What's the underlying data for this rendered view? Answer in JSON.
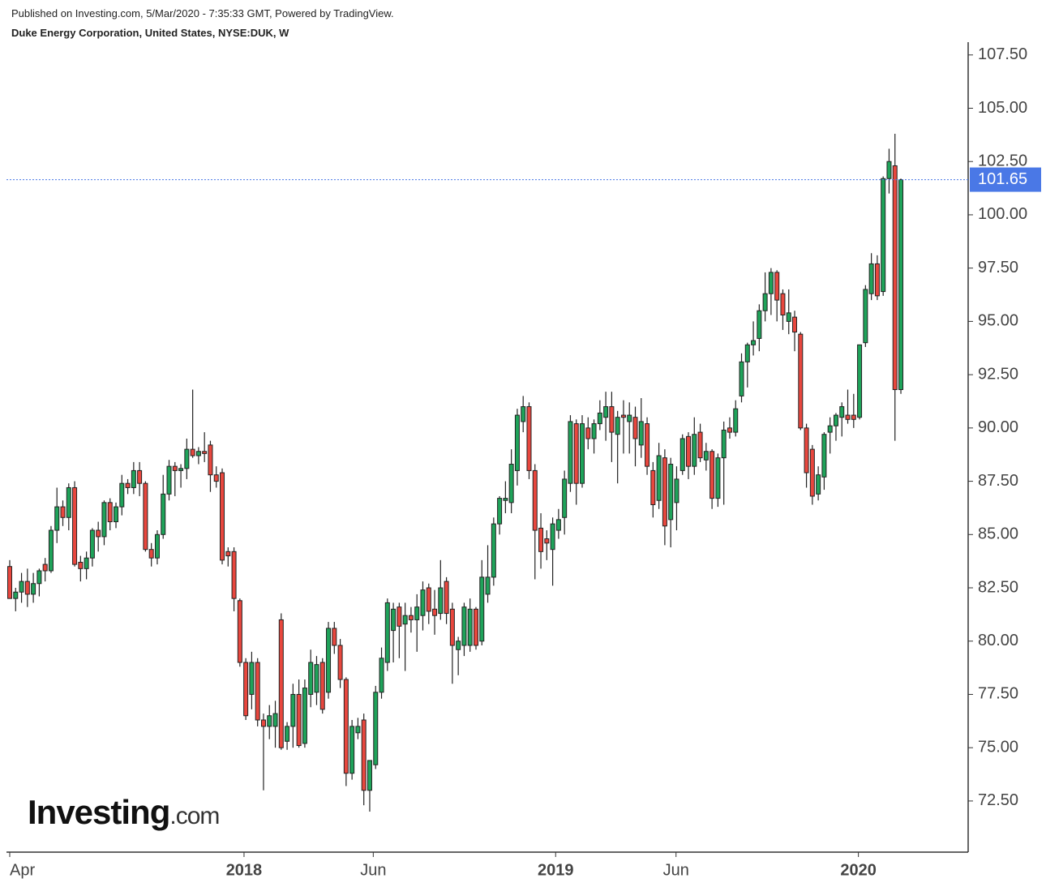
{
  "header": {
    "published": "Published on Investing.com, 5/Mar/2020 - 7:35:33 GMT, Powered by TradingView.",
    "symbol": "Duke Energy Corporation, United States, NYSE:DUK, W",
    "logo_main": "Investing",
    "logo_suffix": ".com"
  },
  "chart_data": {
    "type": "candlestick",
    "up_color": "#1fa35a",
    "down_color": "#e8473e",
    "ylim": [
      70.1,
      108.1
    ],
    "yticks": [
      {
        "value": 72.5,
        "label": "72.50"
      },
      {
        "value": 75,
        "label": "75.00"
      },
      {
        "value": 77.5,
        "label": "77.50"
      },
      {
        "value": 80,
        "label": "80.00"
      },
      {
        "value": 82.5,
        "label": "82.50"
      },
      {
        "value": 85,
        "label": "85.00"
      },
      {
        "value": 87.5,
        "label": "87.50"
      },
      {
        "value": 90,
        "label": "90.00"
      },
      {
        "value": 92.5,
        "label": "92.50"
      },
      {
        "value": 95,
        "label": "95.00"
      },
      {
        "value": 97.5,
        "label": "97.50"
      },
      {
        "value": 100,
        "label": "100.00"
      },
      {
        "value": 102.5,
        "label": "102.50"
      },
      {
        "value": 105,
        "label": "105.00"
      },
      {
        "value": 107.5,
        "label": "107.50"
      }
    ],
    "xlim": [
      -0.4,
      162
    ],
    "xticks": [
      {
        "value": 0,
        "label": "Apr"
      },
      {
        "value": 39.7,
        "label": "2018"
      },
      {
        "value": 61.6,
        "label": "Jun"
      },
      {
        "value": 92.5,
        "label": "2019"
      },
      {
        "value": 112.9,
        "label": "Jun"
      },
      {
        "value": 143.8,
        "label": "2020"
      }
    ],
    "last_price": {
      "value": 101.65,
      "label": "101.65",
      "color": "#4a78e6"
    },
    "candles": [
      [
        83.5,
        83.8,
        82.0,
        82.0
      ],
      [
        82.0,
        82.5,
        81.4,
        82.3
      ],
      [
        82.3,
        83.2,
        81.8,
        82.8
      ],
      [
        82.8,
        83.4,
        81.6,
        82.2
      ],
      [
        82.2,
        83.2,
        81.8,
        82.7
      ],
      [
        82.7,
        83.4,
        82.1,
        83.3
      ],
      [
        83.6,
        83.9,
        82.8,
        83.3
      ],
      [
        83.3,
        85.4,
        83.2,
        85.2
      ],
      [
        85.2,
        87.2,
        84.6,
        86.3
      ],
      [
        86.3,
        86.6,
        85.4,
        85.8
      ],
      [
        85.8,
        87.4,
        85.2,
        87.2
      ],
      [
        87.2,
        87.5,
        83.5,
        83.6
      ],
      [
        83.7,
        84.0,
        82.8,
        83.4
      ],
      [
        83.4,
        84.2,
        82.9,
        83.9
      ],
      [
        83.9,
        85.3,
        83.5,
        85.2
      ],
      [
        85.2,
        85.6,
        84.2,
        84.9
      ],
      [
        84.9,
        86.6,
        84.5,
        86.5
      ],
      [
        86.5,
        86.7,
        85.2,
        85.6
      ],
      [
        85.6,
        86.5,
        85.3,
        86.3
      ],
      [
        86.3,
        87.8,
        85.9,
        87.4
      ],
      [
        87.4,
        87.6,
        86.9,
        87.2
      ],
      [
        87.2,
        88.4,
        86.9,
        88.0
      ],
      [
        88.0,
        88.4,
        86.8,
        87.4
      ],
      [
        87.4,
        87.5,
        84.2,
        84.3
      ],
      [
        84.3,
        84.6,
        83.5,
        83.9
      ],
      [
        83.9,
        85.2,
        83.6,
        85.0
      ],
      [
        85.0,
        87.8,
        84.8,
        86.9
      ],
      [
        86.9,
        88.5,
        86.6,
        88.2
      ],
      [
        88.2,
        88.4,
        86.8,
        88.0
      ],
      [
        88.0,
        88.3,
        87.2,
        88.1
      ],
      [
        88.1,
        89.5,
        87.6,
        89.0
      ],
      [
        89.0,
        91.8,
        88.6,
        88.7
      ],
      [
        88.7,
        89.1,
        88.3,
        88.9
      ],
      [
        88.9,
        89.8,
        88.4,
        88.8
      ],
      [
        89.2,
        89.4,
        87.0,
        87.8
      ],
      [
        87.8,
        88.2,
        87.2,
        87.5
      ],
      [
        87.9,
        88.1,
        83.6,
        83.8
      ],
      [
        84.2,
        84.4,
        83.5,
        84.0
      ],
      [
        84.2,
        84.4,
        81.4,
        82.0
      ],
      [
        81.9,
        82.0,
        78.8,
        79.0
      ],
      [
        79.0,
        79.2,
        76.3,
        76.5
      ],
      [
        77.5,
        79.5,
        76.8,
        79.0
      ],
      [
        79.0,
        79.2,
        76.0,
        76.3
      ],
      [
        76.3,
        76.6,
        73.0,
        76.0
      ],
      [
        76.0,
        77.0,
        75.4,
        76.5
      ],
      [
        76.0,
        77.2,
        75.0,
        76.6
      ],
      [
        81.0,
        81.3,
        74.9,
        75.0
      ],
      [
        75.3,
        76.2,
        74.9,
        76.0
      ],
      [
        76.0,
        78.0,
        75.0,
        77.5
      ],
      [
        77.5,
        78.2,
        75.0,
        75.1
      ],
      [
        75.2,
        78.2,
        75.0,
        77.8
      ],
      [
        77.5,
        79.6,
        76.9,
        79.0
      ],
      [
        77.6,
        79.3,
        77.0,
        78.9
      ],
      [
        79.0,
        79.2,
        76.6,
        76.8
      ],
      [
        77.6,
        80.9,
        77.3,
        80.6
      ],
      [
        80.6,
        80.9,
        79.4,
        79.8
      ],
      [
        79.8,
        80.1,
        77.8,
        78.2
      ],
      [
        78.2,
        78.3,
        73.2,
        73.8
      ],
      [
        73.8,
        76.3,
        73.5,
        76.0
      ],
      [
        75.7,
        76.4,
        75.4,
        76.0
      ],
      [
        76.3,
        76.6,
        72.3,
        73.0
      ],
      [
        73.0,
        74.4,
        72.0,
        74.4
      ],
      [
        74.2,
        77.9,
        74.0,
        77.6
      ],
      [
        77.6,
        79.7,
        77.3,
        79.2
      ],
      [
        79.0,
        82.0,
        78.6,
        81.8
      ],
      [
        80.5,
        81.8,
        79.0,
        81.5
      ],
      [
        81.6,
        81.8,
        79.2,
        80.7
      ],
      [
        80.8,
        81.8,
        78.6,
        81.2
      ],
      [
        81.2,
        81.6,
        80.4,
        81.0
      ],
      [
        81.0,
        82.2,
        79.5,
        81.6
      ],
      [
        81.2,
        82.8,
        80.5,
        82.4
      ],
      [
        82.5,
        82.7,
        80.8,
        81.4
      ],
      [
        81.5,
        82.4,
        80.3,
        81.2
      ],
      [
        81.3,
        83.8,
        81.0,
        82.5
      ],
      [
        82.8,
        83.0,
        80.8,
        81.3
      ],
      [
        81.5,
        81.8,
        78.0,
        79.8
      ],
      [
        79.6,
        80.2,
        78.4,
        80.0
      ],
      [
        79.8,
        81.8,
        79.3,
        81.6
      ],
      [
        79.8,
        82.0,
        79.5,
        81.5
      ],
      [
        81.5,
        81.6,
        79.6,
        79.8
      ],
      [
        80.0,
        83.8,
        79.8,
        83.0
      ],
      [
        82.2,
        84.5,
        81.8,
        83.0
      ],
      [
        83.0,
        85.8,
        82.6,
        85.5
      ],
      [
        85.5,
        86.8,
        85.0,
        86.7
      ],
      [
        86.6,
        87.5,
        86.0,
        86.7
      ],
      [
        86.5,
        89.0,
        86.0,
        88.3
      ],
      [
        88.0,
        90.9,
        87.3,
        90.6
      ],
      [
        90.3,
        91.5,
        89.8,
        91.0
      ],
      [
        91.0,
        91.2,
        87.6,
        88.0
      ],
      [
        88.0,
        88.3,
        82.9,
        85.2
      ],
      [
        85.3,
        86.0,
        83.4,
        84.2
      ],
      [
        84.8,
        85.2,
        83.8,
        84.6
      ],
      [
        84.3,
        85.8,
        82.6,
        85.5
      ],
      [
        85.2,
        86.2,
        84.8,
        85.7
      ],
      [
        85.8,
        88.0,
        85.0,
        87.6
      ],
      [
        87.4,
        90.6,
        87.0,
        90.3
      ],
      [
        90.2,
        90.4,
        86.4,
        87.4
      ],
      [
        87.4,
        90.6,
        87.2,
        90.2
      ],
      [
        90.0,
        90.5,
        89.0,
        89.5
      ],
      [
        89.5,
        90.4,
        88.8,
        90.2
      ],
      [
        90.2,
        91.3,
        89.9,
        90.7
      ],
      [
        90.5,
        91.7,
        89.4,
        91.0
      ],
      [
        91.0,
        91.7,
        88.4,
        89.8
      ],
      [
        89.7,
        90.8,
        87.4,
        90.5
      ],
      [
        90.6,
        91.3,
        88.8,
        90.5
      ],
      [
        90.3,
        91.2,
        88.8,
        90.6
      ],
      [
        90.5,
        91.0,
        88.2,
        89.5
      ],
      [
        89.2,
        91.4,
        88.6,
        90.3
      ],
      [
        90.2,
        90.5,
        87.8,
        88.2
      ],
      [
        88.0,
        88.4,
        85.8,
        86.4
      ],
      [
        86.6,
        89.3,
        86.2,
        88.7
      ],
      [
        88.6,
        89.0,
        84.5,
        85.4
      ],
      [
        85.7,
        88.6,
        84.4,
        88.3
      ],
      [
        86.5,
        88.2,
        85.2,
        87.6
      ],
      [
        88.0,
        89.7,
        87.8,
        89.5
      ],
      [
        89.6,
        89.8,
        87.6,
        88.2
      ],
      [
        88.2,
        90.5,
        87.8,
        89.7
      ],
      [
        89.8,
        90.2,
        88.4,
        88.6
      ],
      [
        88.5,
        89.3,
        88.0,
        88.9
      ],
      [
        88.9,
        89.0,
        86.2,
        86.7
      ],
      [
        86.7,
        88.8,
        86.3,
        88.6
      ],
      [
        88.6,
        90.3,
        86.4,
        89.9
      ],
      [
        90.0,
        90.5,
        89.5,
        89.8
      ],
      [
        89.8,
        91.3,
        89.6,
        90.9
      ],
      [
        91.5,
        93.5,
        91.2,
        93.1
      ],
      [
        93.1,
        94.0,
        91.9,
        93.9
      ],
      [
        93.9,
        95.0,
        93.4,
        94.1
      ],
      [
        94.2,
        95.8,
        93.6,
        95.5
      ],
      [
        95.5,
        97.3,
        95.0,
        96.3
      ],
      [
        96.3,
        97.5,
        95.3,
        97.3
      ],
      [
        97.3,
        97.4,
        95.0,
        96.0
      ],
      [
        96.3,
        96.5,
        94.6,
        95.3
      ],
      [
        95.0,
        96.5,
        94.4,
        95.4
      ],
      [
        95.2,
        95.5,
        93.6,
        94.5
      ],
      [
        94.4,
        94.5,
        89.9,
        90.0
      ],
      [
        90.0,
        90.2,
        87.2,
        87.9
      ],
      [
        89.0,
        89.2,
        86.4,
        86.8
      ],
      [
        86.9,
        88.2,
        86.6,
        87.8
      ],
      [
        87.7,
        89.8,
        87.1,
        89.7
      ],
      [
        89.8,
        90.5,
        88.8,
        90.1
      ],
      [
        90.1,
        90.7,
        89.4,
        90.6
      ],
      [
        90.5,
        91.2,
        89.6,
        91.0
      ],
      [
        90.6,
        91.8,
        90.2,
        90.4
      ],
      [
        90.6,
        91.6,
        90.0,
        90.4
      ],
      [
        90.5,
        93.9,
        90.4,
        93.9
      ],
      [
        94.0,
        96.7,
        93.8,
        96.5
      ],
      [
        96.3,
        98.2,
        96.0,
        97.7
      ],
      [
        97.7,
        98.1,
        96.0,
        96.2
      ],
      [
        96.4,
        101.8,
        96.2,
        101.7
      ],
      [
        101.7,
        103.1,
        101.0,
        102.5
      ],
      [
        102.3,
        103.8,
        89.4,
        91.8
      ],
      [
        91.8,
        101.7,
        91.6,
        101.65
      ]
    ]
  }
}
